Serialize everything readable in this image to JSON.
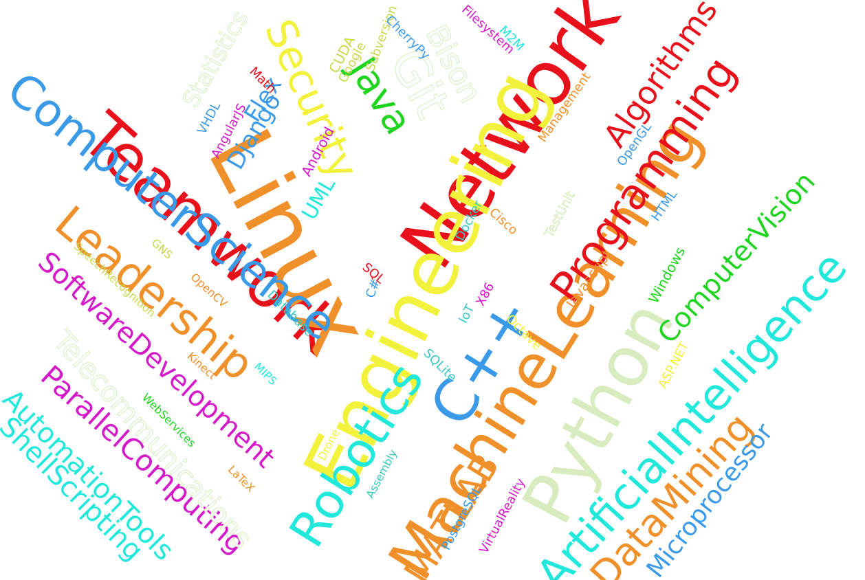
{
  "colors": {
    "red": "#e8101a",
    "orange": "#f0902a",
    "yellow": "#f2f23c",
    "green": "#1ed41e",
    "cyan": "#22e8dc",
    "blue": "#3a9ae8",
    "magenta": "#d41ac8",
    "pale": "#d8ecc0",
    "olive": "#c8d850",
    "teal": "#3ac8c0"
  },
  "words": [
    {
      "id": "network",
      "text": "Network",
      "color": "red"
    },
    {
      "id": "teamwork",
      "text": "Teamwork",
      "color": "red"
    },
    {
      "id": "linux",
      "text": "Linux",
      "color": "orange"
    },
    {
      "id": "engineering",
      "text": "Engineering",
      "color": "yellow"
    },
    {
      "id": "machinelearning",
      "text": "MachineLearning",
      "color": "orange"
    },
    {
      "id": "computerscience",
      "text": "ComputerScience",
      "color": "blue"
    },
    {
      "id": "leadership",
      "text": "Leadership",
      "color": "orange"
    },
    {
      "id": "programming",
      "text": "Programming",
      "color": "red"
    },
    {
      "id": "cpp",
      "text": "C++",
      "color": "blue"
    },
    {
      "id": "python",
      "text": "Python",
      "color": "pale"
    },
    {
      "id": "robotics",
      "text": "Robotics",
      "color": "cyan"
    },
    {
      "id": "artificialintelligence",
      "text": "ArtificialIntelligence",
      "color": "cyan"
    },
    {
      "id": "datamining",
      "text": "DataMining",
      "color": "orange"
    },
    {
      "id": "security",
      "text": "Security",
      "color": "yellow"
    },
    {
      "id": "java",
      "text": "Java",
      "color": "green"
    },
    {
      "id": "git",
      "text": "Git",
      "color": "pale"
    },
    {
      "id": "bison",
      "text": "Bison",
      "color": "pale"
    },
    {
      "id": "algorithms",
      "text": "Algorithms",
      "color": "red"
    },
    {
      "id": "computervision",
      "text": "ComputerVision",
      "color": "green"
    },
    {
      "id": "softwaredevelopment",
      "text": "SoftwareDevelopment",
      "color": "magenta"
    },
    {
      "id": "parallelcomputing",
      "text": "ParallelComputing",
      "color": "magenta"
    },
    {
      "id": "automationtools",
      "text": "AutomationTools",
      "color": "cyan"
    },
    {
      "id": "shellscripting",
      "text": "ShellScripting",
      "color": "cyan"
    },
    {
      "id": "telecommunications",
      "text": "Telecommunications",
      "color": "pale"
    },
    {
      "id": "microprocessor",
      "text": "Microprocessor",
      "color": "blue"
    },
    {
      "id": "matlab",
      "text": "MATLAB",
      "color": "orange"
    },
    {
      "id": "statistics",
      "text": "Statistics",
      "color": "pale"
    },
    {
      "id": "django",
      "text": "Django",
      "color": "blue"
    },
    {
      "id": "flex",
      "text": "Flex",
      "color": "blue"
    },
    {
      "id": "uml",
      "text": "UML",
      "color": "cyan"
    },
    {
      "id": "cuda",
      "text": "CUDA",
      "color": "olive"
    },
    {
      "id": "google",
      "text": "Google",
      "color": "olive"
    },
    {
      "id": "subversion",
      "text": "Subversion",
      "color": "olive"
    },
    {
      "id": "cherrypy",
      "text": "CherryPy",
      "color": "blue"
    },
    {
      "id": "filesystem",
      "text": "Filesystem",
      "color": "magenta"
    },
    {
      "id": "m2m",
      "text": "M2M",
      "color": "cyan"
    },
    {
      "id": "management",
      "text": "Management",
      "color": "orange"
    },
    {
      "id": "opengl",
      "text": "OpenGL",
      "color": "blue"
    },
    {
      "id": "html",
      "text": "HTML",
      "color": "blue"
    },
    {
      "id": "testunit",
      "text": "TestUnit",
      "color": "pale"
    },
    {
      "id": "cisco",
      "text": "Cisco",
      "color": "orange"
    },
    {
      "id": "docker",
      "text": "Docker",
      "color": "teal"
    },
    {
      "id": "android",
      "text": "Android",
      "color": "magenta"
    },
    {
      "id": "angularjs",
      "text": "AngularJS",
      "color": "magenta"
    },
    {
      "id": "vhdl",
      "text": "VHDL",
      "color": "blue"
    },
    {
      "id": "math",
      "text": "Math",
      "color": "red"
    },
    {
      "id": "javascript",
      "text": "Javascript",
      "color": "orange"
    },
    {
      "id": "windows",
      "text": "Windows",
      "color": "green"
    },
    {
      "id": "aspnet",
      "text": "ASP.NET",
      "color": "yellow"
    },
    {
      "id": "octave",
      "text": "Octave",
      "color": "yellow"
    },
    {
      "id": "iot",
      "text": "IoT",
      "color": "teal"
    },
    {
      "id": "x86",
      "text": "X86",
      "color": "magenta"
    },
    {
      "id": "sqlite",
      "text": "SQLite",
      "color": "teal"
    },
    {
      "id": "sql",
      "text": "SQL",
      "color": "red"
    },
    {
      "id": "csharp",
      "text": "C#",
      "color": "blue"
    },
    {
      "id": "database",
      "text": "Database",
      "color": "teal"
    },
    {
      "id": "gns",
      "text": "GNS",
      "color": "olive"
    },
    {
      "id": "speechrecognition",
      "text": "SpeechRecognition",
      "color": "olive"
    },
    {
      "id": "opencv",
      "text": "OpenCV",
      "color": "orange"
    },
    {
      "id": "kinect",
      "text": "Kinect",
      "color": "orange"
    },
    {
      "id": "mips",
      "text": "MIPS",
      "color": "cyan"
    },
    {
      "id": "webservices",
      "text": "WebServices",
      "color": "green"
    },
    {
      "id": "latex",
      "text": "LaTeX",
      "color": "orange"
    },
    {
      "id": "drone",
      "text": "Drone",
      "color": "yellow"
    },
    {
      "id": "assembly",
      "text": "Assembly",
      "color": "teal"
    },
    {
      "id": "postgresql",
      "text": "PostgreSQL",
      "color": "blue"
    },
    {
      "id": "virtualreality",
      "text": "VirtualReality",
      "color": "magenta"
    }
  ]
}
